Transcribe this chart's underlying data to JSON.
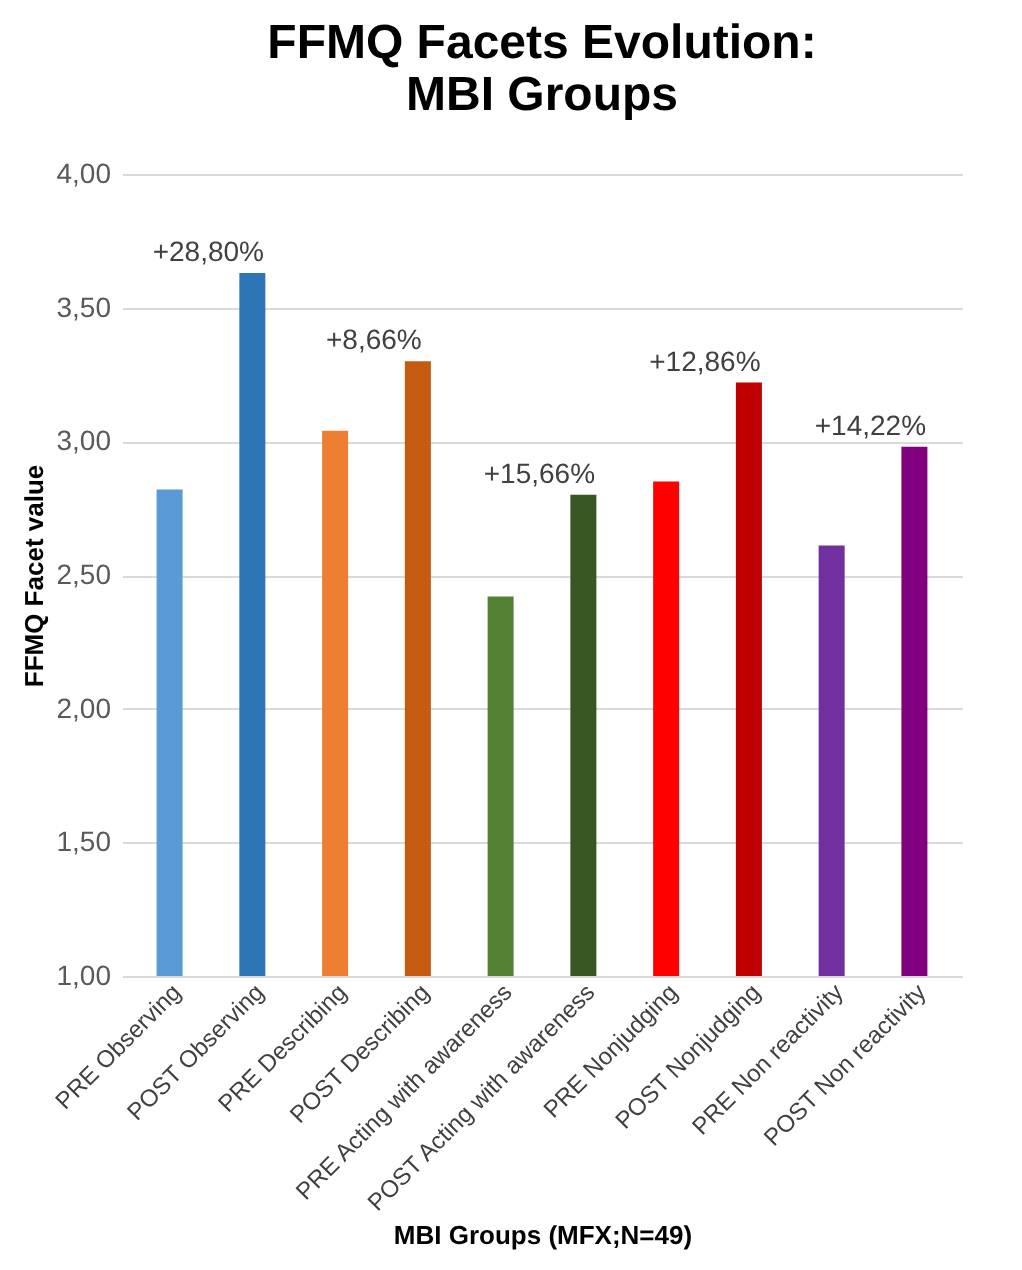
{
  "chart_data": {
    "type": "bar",
    "title": "FFMQ Facets Evolution: MBI Groups",
    "xlabel": "MBI Groups (MFX;N=49)",
    "ylabel": "FFMQ Facet value",
    "categories": [
      "PRE Observing",
      "POST Observing",
      "PRE Describing",
      "POST Describing",
      "PRE Acting with awareness",
      "POST Acting with awareness",
      "PRE Nonjudging",
      "POST Nonjudging",
      "PRE Non reactivity",
      "POST Non reactivity"
    ],
    "values": [
      2.82,
      3.63,
      3.04,
      3.3,
      2.42,
      2.8,
      2.85,
      3.22,
      2.61,
      2.98
    ],
    "colors": [
      "#5b9bd5",
      "#2e75b6",
      "#ed7d31",
      "#c55a11",
      "#548235",
      "#385723",
      "#ff0000",
      "#c00000",
      "#7030a0",
      "#800080"
    ],
    "ylim": [
      1,
      4
    ],
    "yticks": [
      {
        "value": 1,
        "label": "1,00"
      },
      {
        "value": 1.5,
        "label": "1,50"
      },
      {
        "value": 2,
        "label": "2,00"
      },
      {
        "value": 2.5,
        "label": "2,50"
      },
      {
        "value": 3,
        "label": "3,00"
      },
      {
        "value": 3.5,
        "label": "3,50"
      },
      {
        "value": 4,
        "label": "4,00"
      }
    ],
    "grid": "y",
    "annotations": [
      {
        "text": "+28,80%",
        "x": "POST Observing",
        "y": 3.63
      },
      {
        "text": "+8,66%",
        "x": "POST Describing",
        "y": 3.3
      },
      {
        "text": "+15,66%",
        "x": "POST Acting with awareness",
        "y": 2.8
      },
      {
        "text": "+12,86%",
        "x": "POST Nonjudging",
        "y": 3.22
      },
      {
        "text": "+14,22%",
        "x": "POST Non reactivity",
        "y": 2.98
      }
    ]
  }
}
